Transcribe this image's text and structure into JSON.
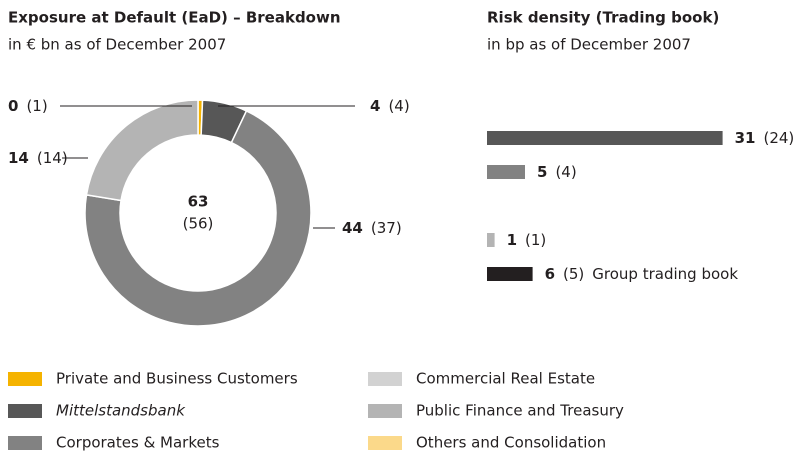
{
  "chart_data": [
    {
      "type": "donut",
      "title": "Exposure at Default (EaD) – Breakdown",
      "subtitle": "in € bn as of December 2007",
      "values": [
        0.4,
        4,
        44,
        14
      ],
      "value_labels": [
        "0",
        "4",
        "44",
        "14"
      ],
      "prior_labels": [
        "(1)",
        "(4)",
        "(37)",
        "(14)"
      ],
      "colors": [
        "#f5b300",
        "#575757",
        "#828282",
        "#b4b4b4"
      ],
      "center_label": "63",
      "center_prior": "(56)"
    },
    {
      "type": "hbar",
      "title": "Risk density (Trading book)",
      "subtitle": "in bp as of December 2007",
      "categories": [
        null,
        null,
        null,
        null,
        "Group trading book"
      ],
      "values": [
        31,
        5,
        null,
        1,
        6
      ],
      "prior_labels": [
        "(24)",
        "(4)",
        null,
        "(1)",
        "(5)"
      ],
      "colors": [
        "#575757",
        "#828282",
        "#d2d2d2",
        "#b4b4b4",
        "#231f20"
      ]
    }
  ],
  "legend": [
    {
      "name": "Private and Business Customers",
      "color": "#f5b300",
      "style": "normal"
    },
    {
      "name": "Mittelstandsbank",
      "color": "#575757",
      "style": "italic"
    },
    {
      "name": "Corporates & Markets",
      "color": "#828282",
      "style": "normal"
    },
    {
      "name": "Commercial Real Estate",
      "color": "#d2d2d2",
      "style": "normal"
    },
    {
      "name": "Public Finance and Treasury",
      "color": "#b4b4b4",
      "style": "normal"
    },
    {
      "name": "Others and Consolidation",
      "color": "#fbd98a",
      "style": "normal"
    }
  ]
}
